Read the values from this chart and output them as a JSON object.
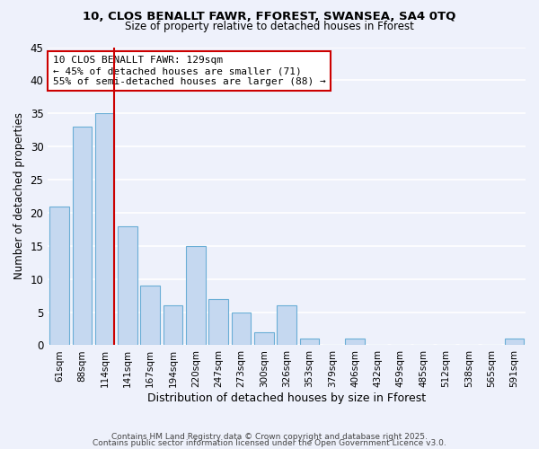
{
  "title1": "10, CLOS BENALLT FAWR, FFOREST, SWANSEA, SA4 0TQ",
  "title2": "Size of property relative to detached houses in Fforest",
  "xlabel": "Distribution of detached houses by size in Fforest",
  "ylabel": "Number of detached properties",
  "categories": [
    "61sqm",
    "88sqm",
    "114sqm",
    "141sqm",
    "167sqm",
    "194sqm",
    "220sqm",
    "247sqm",
    "273sqm",
    "300sqm",
    "326sqm",
    "353sqm",
    "379sqm",
    "406sqm",
    "432sqm",
    "459sqm",
    "485sqm",
    "512sqm",
    "538sqm",
    "565sqm",
    "591sqm"
  ],
  "values": [
    21,
    33,
    35,
    18,
    9,
    6,
    15,
    7,
    5,
    2,
    6,
    1,
    0,
    1,
    0,
    0,
    0,
    0,
    0,
    0,
    1
  ],
  "bar_color": "#c5d8f0",
  "bar_edge_color": "#6aaed6",
  "vline_x_index": 2,
  "vline_color": "#cc0000",
  "annotation_text": "10 CLOS BENALLT FAWR: 129sqm\n← 45% of detached houses are smaller (71)\n55% of semi-detached houses are larger (88) →",
  "annotation_box_color": "#ffffff",
  "annotation_box_edge": "#cc0000",
  "ylim": [
    0,
    45
  ],
  "yticks": [
    0,
    5,
    10,
    15,
    20,
    25,
    30,
    35,
    40,
    45
  ],
  "background_color": "#eef1fb",
  "grid_color": "#ffffff",
  "footer_line1": "Contains HM Land Registry data © Crown copyright and database right 2025.",
  "footer_line2": "Contains public sector information licensed under the Open Government Licence v3.0."
}
